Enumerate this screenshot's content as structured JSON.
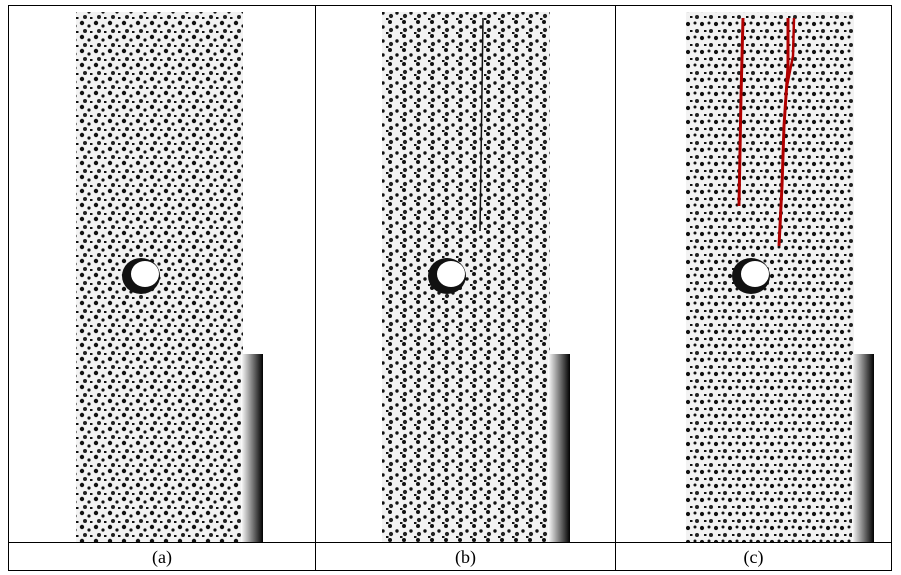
{
  "figure": {
    "panels": [
      {
        "caption": "(a)",
        "crack_overlay": "none"
      },
      {
        "caption": "(b)",
        "crack_overlay": "faint-dark-line"
      },
      {
        "caption": "(c)",
        "crack_overlay": "red-traced-cracks"
      }
    ],
    "colors": {
      "specimen_white": "#f4f4f4",
      "speckle_black": "#111111",
      "hole_white": "#ffffff",
      "crack_red": "#b00000",
      "border": "#000000"
    }
  }
}
